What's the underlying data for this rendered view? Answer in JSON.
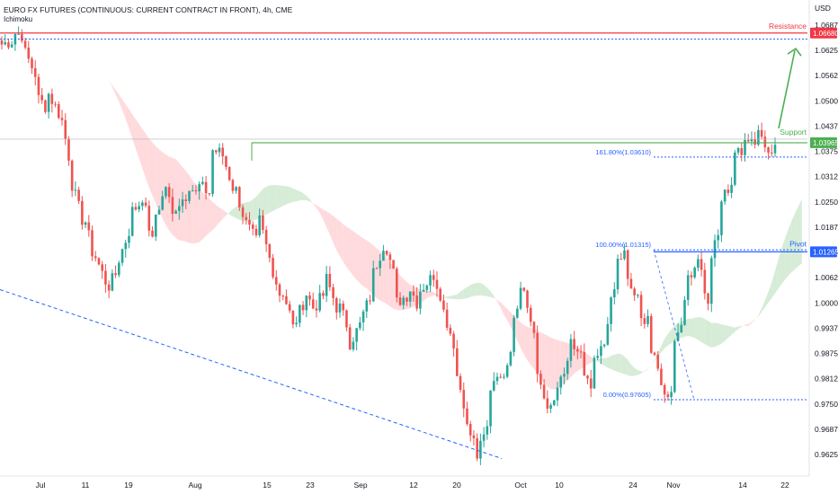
{
  "header": {
    "title": "EURO FX FUTURES (CONTINUOUS: CURRENT CONTRACT IN FRONT), 4h, CME",
    "indicator": "Ichimoku"
  },
  "axis": {
    "currency": "USD"
  },
  "colors": {
    "up": "#26a69a",
    "down": "#ef5350",
    "resistance": "#f23645",
    "support": "#4caf50",
    "pivot": "#2962ff",
    "cloud_bull": "#c8e6c9",
    "cloud_bear": "#ffcdd2"
  },
  "chart_data": {
    "type": "candlestick",
    "ylim": [
      0.95875,
      1.06875
    ],
    "y_ticks": [
      "1.06875",
      "1.06250",
      "1.05625",
      "1.05000",
      "1.04375",
      "1.03750",
      "1.03125",
      "1.02500",
      "1.01875",
      "1.01250",
      "1.00625",
      "1.00000",
      "0.99375",
      "0.98750",
      "0.98125",
      "0.97500",
      "0.96875",
      "0.96250"
    ],
    "x_ticks": [
      "Jul",
      "11",
      "19",
      "Aug",
      "15",
      "23",
      "Sep",
      "12",
      "20",
      "Oct",
      "10",
      "24",
      "Nov",
      "14",
      "22"
    ],
    "price_labels": [
      {
        "key": "resistance",
        "value": "1.06680"
      },
      {
        "key": "support",
        "value": "1.03965"
      },
      {
        "key": "pivot",
        "value": "1.01265"
      }
    ],
    "levels": {
      "resistance": {
        "label": "Resistance",
        "value": 1.0668
      },
      "support": {
        "label": "Support",
        "value": 1.03965
      },
      "pivot": {
        "label": "Pivot",
        "value": 1.01265
      },
      "resistance_dotted": 1.0653,
      "trendline_start": 1.0033,
      "trendline_end": 0.9615
    },
    "fibonacci": [
      {
        "label": "161.80%(1.03610)",
        "value": 1.0361
      },
      {
        "label": "100.00%(1.01315)",
        "value": 1.01315
      },
      {
        "label": "0.00%(0.97605)",
        "value": 0.97605
      }
    ],
    "anchors": [
      [
        1.064,
        1.065
      ],
      [
        1.0668,
        1.0662
      ],
      [
        1.062,
        1.056
      ],
      [
        1.051,
        1.048
      ],
      [
        1.052,
        1.0465
      ],
      [
        1.048,
        1.033
      ],
      [
        1.03,
        1.02
      ],
      [
        1.023,
        1.01
      ],
      [
        1.012,
        1.005
      ],
      [
        1.003,
        1.008
      ],
      [
        1.01,
        1.018
      ],
      [
        1.022,
        1.025
      ],
      [
        1.028,
        1.015
      ],
      [
        1.02,
        1.027
      ],
      [
        1.031,
        1.018
      ],
      [
        1.024,
        1.027
      ],
      [
        1.03,
        1.026
      ],
      [
        1.029,
        1.027
      ],
      [
        1.038,
        1.037
      ],
      [
        1.037,
        1.028
      ],
      [
        1.03,
        1.02
      ],
      [
        1.02,
        1.015
      ],
      [
        1.023,
        1.012
      ],
      [
        1.012,
        1.002
      ],
      [
        1.005,
        0.996
      ],
      [
        0.993,
        1.0
      ],
      [
        1.004,
        0.998
      ],
      [
        0.999,
        1.003
      ],
      [
        1.006,
        0.998
      ],
      [
        1.0,
        0.993
      ],
      [
        0.99,
        0.995
      ],
      [
        0.996,
        1.003
      ],
      [
        1.007,
        1.015
      ],
      [
        1.016,
        1.005
      ],
      [
        1.0,
        1.002
      ],
      [
        1.005,
        0.999
      ],
      [
        1.003,
        1.006
      ],
      [
        1.009,
        1.001
      ],
      [
        0.999,
        0.99
      ],
      [
        0.985,
        0.974
      ],
      [
        0.97,
        0.964
      ],
      [
        0.962,
        0.97
      ],
      [
        0.978,
        0.985
      ],
      [
        0.98,
        0.99
      ],
      [
        0.995,
        1.006
      ],
      [
        1.004,
        0.99
      ],
      [
        0.984,
        0.976
      ],
      [
        0.972,
        0.978
      ],
      [
        0.98,
        0.985
      ],
      [
        0.99,
        0.987
      ],
      [
        0.982,
        0.978
      ],
      [
        0.984,
        0.99
      ],
      [
        0.993,
        1.005
      ],
      [
        1.01,
        1.013
      ],
      [
        1.005,
        1.0
      ],
      [
        0.995,
        0.998
      ],
      [
        0.988,
        0.98
      ],
      [
        0.976,
        0.98
      ],
      [
        0.99,
        1.0
      ],
      [
        1.006,
        1.01
      ],
      [
        1.013,
        0.998
      ],
      [
        1.01,
        1.018
      ],
      [
        1.025,
        1.03
      ],
      [
        1.038,
        1.036
      ],
      [
        1.042,
        1.04
      ],
      [
        1.045,
        1.038
      ],
      [
        1.039,
        1.038
      ]
    ]
  }
}
